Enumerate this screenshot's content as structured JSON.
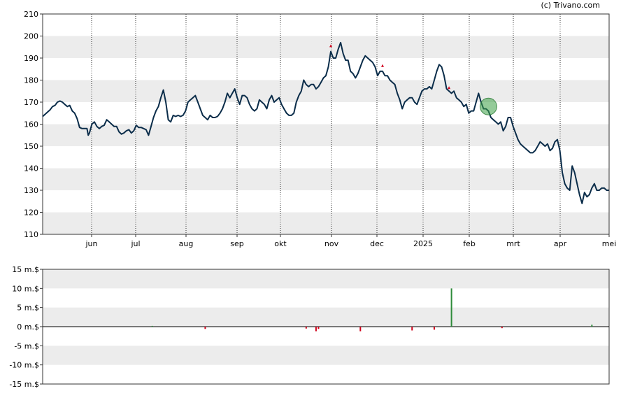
{
  "credit": "(c) Trivano.com",
  "chart_data": [
    {
      "type": "line",
      "x_tick_labels": [
        "jun",
        "jul",
        "aug",
        "sep",
        "okt",
        "nov",
        "dec",
        "2025",
        "feb",
        "mrt",
        "apr",
        "mei"
      ],
      "y_ticks": [
        110,
        120,
        130,
        140,
        150,
        160,
        170,
        180,
        190,
        200,
        210
      ],
      "ylim": [
        110,
        210
      ],
      "grid": "alternating horizontal bands, dotted vertical month lines",
      "series": [
        {
          "color": "#0b2d4a",
          "points": [
            [
              0,
              163.5
            ],
            [
              3,
              165
            ],
            [
              6,
              166.5
            ],
            [
              8,
              168
            ],
            [
              10,
              168.5
            ],
            [
              12,
              170
            ],
            [
              14,
              170.5
            ],
            [
              16,
              170
            ],
            [
              18,
              169
            ],
            [
              20,
              168
            ],
            [
              22,
              168.5
            ],
            [
              24,
              166
            ],
            [
              26,
              165
            ],
            [
              28,
              162.5
            ],
            [
              30,
              158.5
            ],
            [
              32,
              158
            ],
            [
              34,
              158
            ],
            [
              36,
              158
            ],
            [
              37,
              155
            ],
            [
              38,
              156
            ],
            [
              40,
              160
            ],
            [
              42,
              161
            ],
            [
              44,
              159
            ],
            [
              46,
              158
            ],
            [
              48,
              159
            ],
            [
              50,
              159.5
            ],
            [
              52,
              162
            ],
            [
              54,
              161
            ],
            [
              56,
              160
            ],
            [
              58,
              159
            ],
            [
              60,
              159
            ],
            [
              62,
              156.5
            ],
            [
              64,
              155.5
            ],
            [
              66,
              156
            ],
            [
              68,
              157
            ],
            [
              70,
              157.5
            ],
            [
              72,
              156
            ],
            [
              74,
              157
            ],
            [
              76,
              159.5
            ],
            [
              78,
              158.5
            ],
            [
              80,
              158.5
            ],
            [
              82,
              158
            ],
            [
              84,
              157.5
            ],
            [
              86,
              155
            ],
            [
              88,
              159
            ],
            [
              90,
              163
            ],
            [
              92,
              166
            ],
            [
              94,
              168
            ],
            [
              96,
              172
            ],
            [
              98,
              175.5
            ],
            [
              100,
              170
            ],
            [
              102,
              162
            ],
            [
              104,
              161
            ],
            [
              106,
              164
            ],
            [
              108,
              163.5
            ],
            [
              110,
              164
            ],
            [
              112,
              163.5
            ],
            [
              114,
              164
            ],
            [
              116,
              166
            ],
            [
              118,
              170
            ],
            [
              120,
              171
            ],
            [
              122,
              172
            ],
            [
              124,
              173
            ],
            [
              126,
              170
            ],
            [
              128,
              167
            ],
            [
              130,
              164
            ],
            [
              132,
              163
            ],
            [
              134,
              162
            ],
            [
              136,
              164
            ],
            [
              138,
              163
            ],
            [
              140,
              163
            ],
            [
              142,
              163.5
            ],
            [
              144,
              165
            ],
            [
              146,
              167
            ],
            [
              148,
              170
            ],
            [
              150,
              174
            ],
            [
              152,
              172
            ],
            [
              154,
              174
            ],
            [
              156,
              176
            ],
            [
              158,
              172
            ],
            [
              160,
              169
            ],
            [
              162,
              173
            ],
            [
              164,
              173
            ],
            [
              166,
              172
            ],
            [
              168,
              169
            ],
            [
              170,
              167
            ],
            [
              172,
              166
            ],
            [
              174,
              167
            ],
            [
              176,
              171
            ],
            [
              178,
              170
            ],
            [
              180,
              169
            ],
            [
              182,
              167
            ],
            [
              184,
              171
            ],
            [
              186,
              173
            ],
            [
              188,
              170
            ],
            [
              190,
              171
            ],
            [
              192,
              172
            ],
            [
              194,
              169
            ],
            [
              196,
              167
            ],
            [
              198,
              165
            ],
            [
              200,
              164
            ],
            [
              202,
              164
            ],
            [
              204,
              165
            ],
            [
              206,
              170
            ],
            [
              208,
              173
            ],
            [
              210,
              175
            ],
            [
              212,
              180
            ],
            [
              214,
              178
            ],
            [
              216,
              177
            ],
            [
              218,
              178
            ],
            [
              220,
              178
            ],
            [
              222,
              176
            ],
            [
              224,
              177
            ],
            [
              226,
              179
            ],
            [
              228,
              181
            ],
            [
              230,
              182
            ],
            [
              232,
              186
            ],
            [
              234,
              193
            ],
            [
              236,
              190
            ],
            [
              238,
              190
            ],
            [
              240,
              194
            ],
            [
              242,
              197
            ],
            [
              244,
              192
            ],
            [
              246,
              189
            ],
            [
              248,
              189
            ],
            [
              250,
              184
            ],
            [
              252,
              183
            ],
            [
              254,
              181
            ],
            [
              256,
              183
            ],
            [
              258,
              186
            ],
            [
              260,
              189
            ],
            [
              262,
              191
            ],
            [
              264,
              190
            ],
            [
              266,
              189
            ],
            [
              268,
              188
            ],
            [
              270,
              186
            ],
            [
              272,
              182
            ],
            [
              274,
              184
            ],
            [
              276,
              184
            ],
            [
              278,
              182
            ],
            [
              280,
              182
            ],
            [
              282,
              180
            ],
            [
              284,
              179
            ],
            [
              286,
              178
            ],
            [
              288,
              174
            ],
            [
              290,
              171
            ],
            [
              292,
              167
            ],
            [
              294,
              170
            ],
            [
              296,
              171
            ],
            [
              298,
              172
            ],
            [
              300,
              172
            ],
            [
              302,
              170
            ],
            [
              304,
              169
            ],
            [
              306,
              172
            ],
            [
              308,
              175
            ],
            [
              310,
              176
            ],
            [
              312,
              176
            ],
            [
              314,
              177
            ],
            [
              316,
              176
            ],
            [
              318,
              180
            ],
            [
              320,
              184
            ],
            [
              322,
              187
            ],
            [
              324,
              186
            ],
            [
              326,
              182
            ],
            [
              328,
              176
            ],
            [
              330,
              175
            ],
            [
              332,
              174
            ],
            [
              334,
              175
            ],
            [
              336,
              172
            ],
            [
              338,
              171
            ],
            [
              340,
              170
            ],
            [
              342,
              168
            ],
            [
              344,
              169
            ],
            [
              346,
              165
            ],
            [
              348,
              166
            ],
            [
              350,
              166
            ],
            [
              352,
              170
            ],
            [
              354,
              174
            ],
            [
              356,
              170
            ],
            [
              358,
              167
            ],
            [
              360,
              167
            ],
            [
              362,
              166
            ],
            [
              364,
              163
            ],
            [
              366,
              162
            ],
            [
              368,
              161
            ],
            [
              370,
              160
            ],
            [
              372,
              161
            ],
            [
              374,
              157
            ],
            [
              376,
              159
            ],
            [
              378,
              163
            ],
            [
              380,
              163
            ],
            [
              382,
              159
            ],
            [
              384,
              156
            ],
            [
              386,
              153
            ],
            [
              388,
              151
            ],
            [
              390,
              150
            ],
            [
              392,
              149
            ],
            [
              394,
              148
            ],
            [
              396,
              147
            ],
            [
              398,
              147
            ],
            [
              400,
              148
            ],
            [
              402,
              150
            ],
            [
              404,
              152
            ],
            [
              406,
              151
            ],
            [
              408,
              150
            ],
            [
              410,
              151
            ],
            [
              412,
              148
            ],
            [
              414,
              149
            ],
            [
              416,
              152
            ],
            [
              418,
              153
            ],
            [
              420,
              148
            ],
            [
              422,
              138
            ],
            [
              424,
              133
            ],
            [
              426,
              131
            ],
            [
              428,
              130
            ],
            [
              430,
              141
            ],
            [
              432,
              138
            ],
            [
              434,
              133
            ],
            [
              436,
              128
            ],
            [
              438,
              124
            ],
            [
              440,
              129
            ],
            [
              442,
              127
            ],
            [
              444,
              128
            ],
            [
              446,
              131
            ],
            [
              448,
              133
            ],
            [
              450,
              130
            ],
            [
              452,
              130
            ],
            [
              454,
              131
            ],
            [
              456,
              131
            ],
            [
              458,
              130
            ],
            [
              460,
              130
            ]
          ]
        }
      ],
      "markers": [
        {
          "type": "red-arrow",
          "x": 234,
          "y": 194
        },
        {
          "type": "red-arrow",
          "x": 276,
          "y": 185
        },
        {
          "type": "red-arrow",
          "x": 330,
          "y": 175
        },
        {
          "type": "green-circle",
          "x": 362,
          "y": 168
        }
      ]
    },
    {
      "type": "bar",
      "y_ticks": [
        "15 m.$",
        "10 m.$",
        "5 m.$",
        "0 m.$",
        "-5 m.$",
        "-10 m.$",
        "-15 m.$"
      ],
      "ylim": [
        -15,
        15
      ],
      "grid": "alternating horizontal bands",
      "bars": [
        {
          "x": 89,
          "value": 0.2,
          "color": "#2e8b3a"
        },
        {
          "x": 132,
          "value": -0.6,
          "color": "#d0021b"
        },
        {
          "x": 214,
          "value": -0.5,
          "color": "#d0021b"
        },
        {
          "x": 222,
          "value": -1.2,
          "color": "#d0021b"
        },
        {
          "x": 224,
          "value": -0.6,
          "color": "#d0021b"
        },
        {
          "x": 258,
          "value": -1.2,
          "color": "#d0021b"
        },
        {
          "x": 300,
          "value": -1.0,
          "color": "#d0021b"
        },
        {
          "x": 318,
          "value": -0.8,
          "color": "#d0021b"
        },
        {
          "x": 332,
          "value": 10.0,
          "color": "#2e8b3a"
        },
        {
          "x": 373,
          "value": -0.4,
          "color": "#d0021b"
        },
        {
          "x": 446,
          "value": 0.5,
          "color": "#2e8b3a"
        }
      ]
    }
  ]
}
